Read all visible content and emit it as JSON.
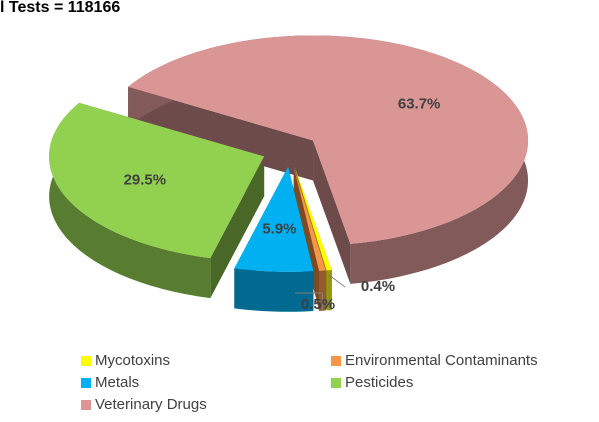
{
  "chart_data": {
    "type": "pie3d",
    "title": "l Tests = 118166",
    "categories": [
      "Mycotoxins",
      "Environmental Contaminants",
      "Metals",
      "Pesticides",
      "Veterinary Drugs"
    ],
    "values": [
      0.4,
      0.5,
      5.9,
      29.5,
      63.7
    ],
    "value_labels": [
      "0.4%",
      "0.5%",
      "5.9%",
      "29.5%",
      "63.7%"
    ],
    "colors": [
      "#ffff00",
      "#f79646",
      "#00b0f0",
      "#92d050",
      "#d99694"
    ]
  }
}
